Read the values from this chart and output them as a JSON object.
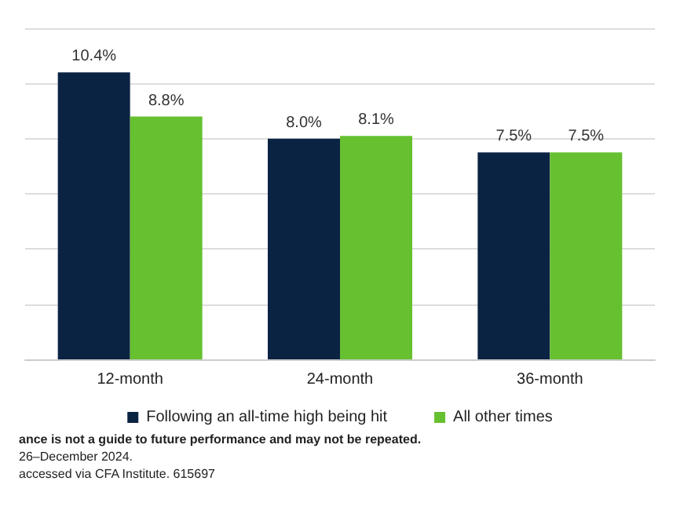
{
  "chart_data": {
    "type": "bar",
    "categories": [
      "12-month",
      "24-month",
      "36-month"
    ],
    "series": [
      {
        "name": "Following an all-time high being hit",
        "color": "#0b2343",
        "values": [
          10.4,
          8.0,
          7.5
        ],
        "value_labels": [
          "10.4%",
          "8.0%",
          "7.5%"
        ]
      },
      {
        "name": "All other times",
        "color": "#66c030",
        "values": [
          8.8,
          8.1,
          7.5
        ],
        "value_labels": [
          "8.8%",
          "8.1%",
          "7.5%"
        ]
      }
    ],
    "tick_labels": "x",
    "grid": "y",
    "legend": "bottom",
    "annotations": [
      "ance is not a guide to future performance and may not be repeated.",
      "26–December 2024.",
      "accessed via CFA Institute. 615697"
    ]
  }
}
